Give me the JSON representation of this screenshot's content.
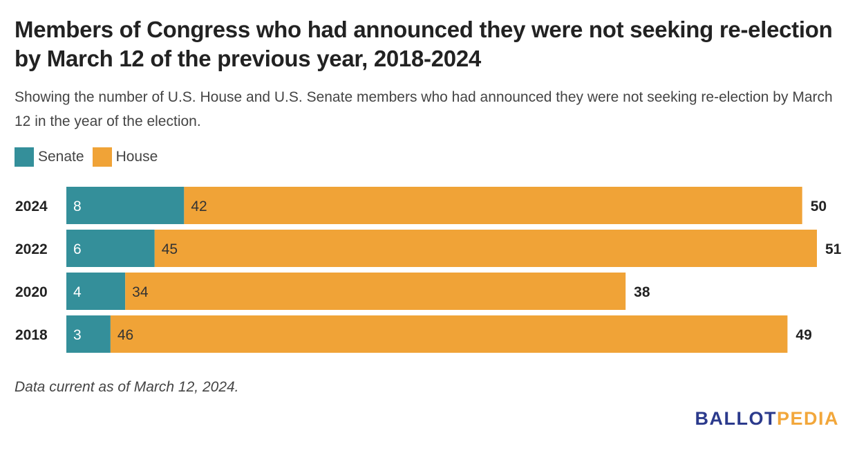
{
  "title": "Members of Congress who had announced they were not seeking re-election by March 12 of the previous year, 2018-2024",
  "subtitle": "Showing the number of U.S. House and U.S. Senate members who had announced they were not seeking re-election by March 12 in the year of the election.",
  "note": "Data current as of March 12, 2024.",
  "logo": {
    "part1": "BALLOT",
    "part2": "PEDIA"
  },
  "colors": {
    "senate": "#348f9a",
    "house": "#f0a337"
  },
  "chart_data": {
    "type": "bar",
    "orientation": "horizontal",
    "stacked": true,
    "categories": [
      "2024",
      "2022",
      "2020",
      "2018"
    ],
    "series": [
      {
        "name": "Senate",
        "values": [
          8,
          6,
          4,
          3
        ]
      },
      {
        "name": "House",
        "values": [
          42,
          45,
          34,
          46
        ]
      }
    ],
    "totals": [
      50,
      51,
      38,
      49
    ],
    "title": "Members of Congress who had announced they were not seeking re-election by March 12 of the previous year, 2018-2024",
    "xlabel": "",
    "ylabel": "",
    "xlim": [
      0,
      51
    ],
    "grid": false,
    "legend": "top-left"
  }
}
